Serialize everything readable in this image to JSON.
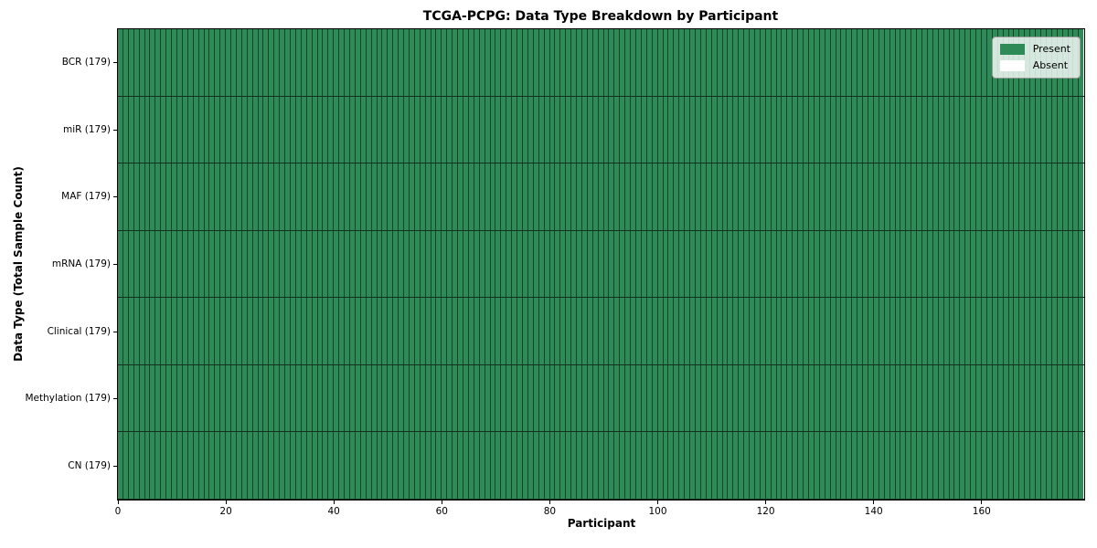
{
  "chart_data": {
    "type": "heatmap",
    "title": "TCGA-PCPG: Data Type Breakdown by Participant",
    "xlabel": "Participant",
    "ylabel": "Data Type (Total Sample Count)",
    "participants": 179,
    "x_range": [
      0,
      179
    ],
    "x_ticks": [
      0,
      20,
      40,
      60,
      80,
      100,
      120,
      140,
      160
    ],
    "rows": [
      {
        "label": "BCR (179)",
        "data_type": "BCR",
        "total_samples": 179,
        "present": 179,
        "absent": 0
      },
      {
        "label": "miR (179)",
        "data_type": "miR",
        "total_samples": 179,
        "present": 179,
        "absent": 0
      },
      {
        "label": "MAF (179)",
        "data_type": "MAF",
        "total_samples": 179,
        "present": 179,
        "absent": 0
      },
      {
        "label": "mRNA (179)",
        "data_type": "mRNA",
        "total_samples": 179,
        "present": 179,
        "absent": 0
      },
      {
        "label": "Clinical (179)",
        "data_type": "Clinical",
        "total_samples": 179,
        "present": 179,
        "absent": 0
      },
      {
        "label": "Methylation (179)",
        "data_type": "Methylation",
        "total_samples": 179,
        "present": 179,
        "absent": 0
      },
      {
        "label": "CN (179)",
        "data_type": "CN",
        "total_samples": 179,
        "present": 179,
        "absent": 0
      }
    ],
    "legend": [
      {
        "label": "Present",
        "color": "#2e8b57"
      },
      {
        "label": "Absent",
        "color": "#ffffff"
      }
    ],
    "legend_position": "upper right",
    "grid": true,
    "colors": {
      "present": "#2e8b57",
      "absent": "#ffffff",
      "cell_border": "rgba(0,0,0,0.5)",
      "row_border": "#14301f",
      "spine": "#000000"
    }
  }
}
